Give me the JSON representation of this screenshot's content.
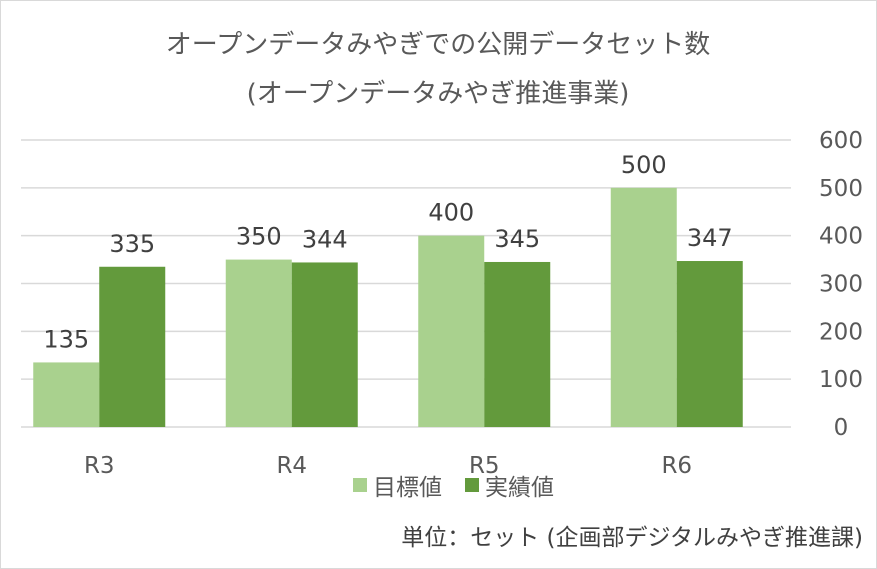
{
  "chart_data": {
    "type": "bar",
    "title": "オープンデータみやぎでの公開データセット数",
    "subtitle": "(オープンデータみやぎ推進事業)",
    "categories": [
      "R3",
      "R4",
      "R5",
      "R6"
    ],
    "series": [
      {
        "name": "目標値",
        "values": [
          135,
          350,
          400,
          500
        ],
        "color": "#a9d18e"
      },
      {
        "name": "実績値",
        "values": [
          335,
          344,
          345,
          347
        ],
        "color": "#639a3c"
      }
    ],
    "ylim": [
      0,
      600
    ],
    "yticks": [
      0,
      100,
      200,
      300,
      400,
      500,
      600
    ],
    "y_axis_side": "right",
    "grid": true,
    "legend_position": "bottom",
    "xlabel": "",
    "ylabel": "",
    "note": "単位：セット (企画部デジタルみやぎ推進課)"
  },
  "colors": {
    "grid": "#d9d9d9",
    "text": "#595959"
  }
}
